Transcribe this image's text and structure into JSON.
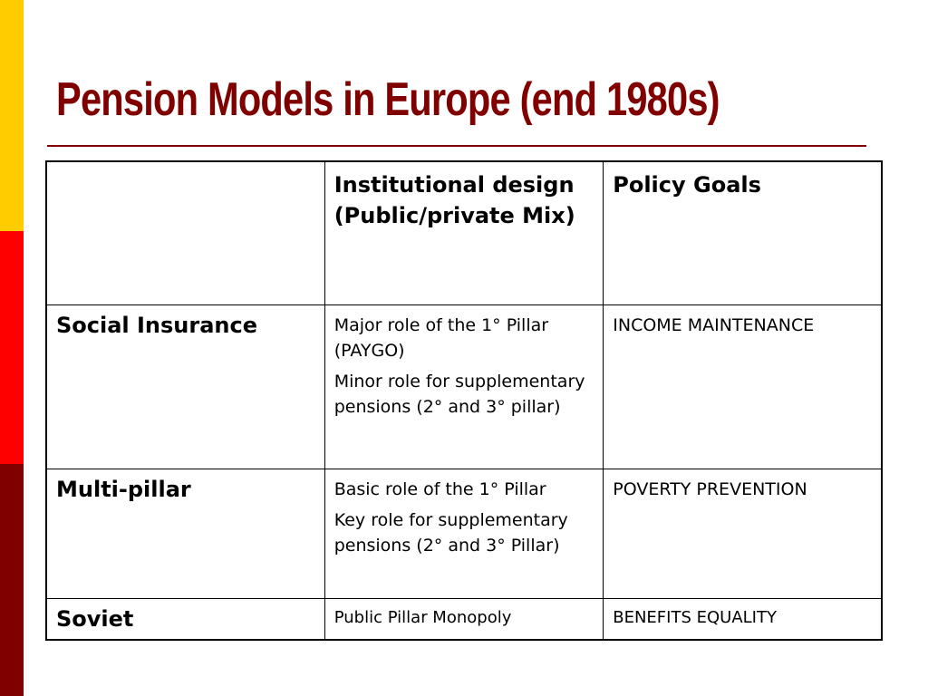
{
  "slide": {
    "title": "Pension Models in Europe (end 1980s)"
  },
  "colors": {
    "title": "#800000",
    "rule": "#800000",
    "side_yellow": "#FFCC00",
    "side_red": "#FF0000",
    "side_dark": "#800000"
  },
  "table": {
    "header": {
      "corner": "",
      "col_design": "Institutional design (Public/private Mix)",
      "col_goals": "Policy Goals"
    },
    "rows": [
      {
        "model": "Social Insurance",
        "design_lines": [
          "Major role of the 1° Pillar (PAYGO)",
          "Minor role for supplementary pensions (2° and 3° pillar)"
        ],
        "goal": "INCOME MAINTENANCE"
      },
      {
        "model": "Multi-pillar",
        "design_lines": [
          "Basic role of the 1° Pillar",
          "Key role for supplementary pensions (2° and 3° Pillar)"
        ],
        "goal": "POVERTY PREVENTION"
      },
      {
        "model": "Soviet",
        "design_lines": [
          "Public Pillar Monopoly"
        ],
        "goal": "BENEFITS EQUALITY"
      }
    ]
  }
}
